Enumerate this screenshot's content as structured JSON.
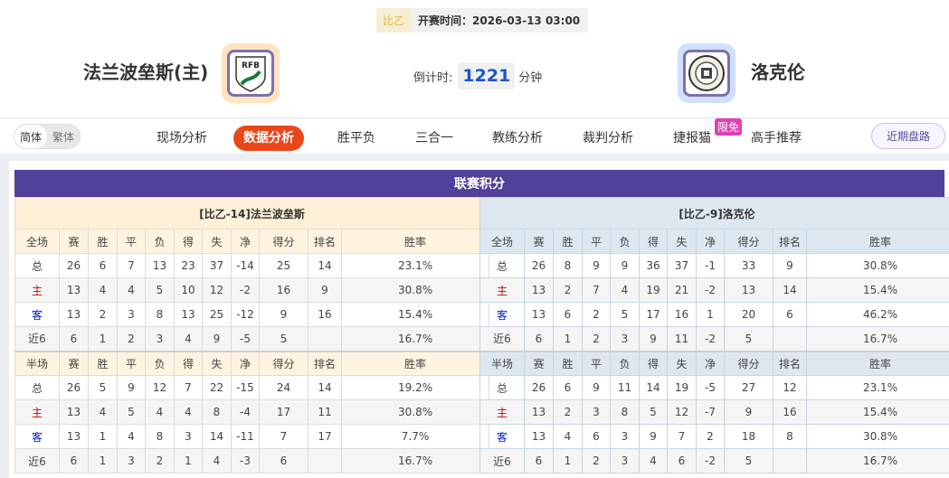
{
  "header": {
    "league": "比乙",
    "kickoff": "开赛时间：2026-03-13 03:00",
    "home_team": "法兰波垒斯(主)",
    "away_team": "洛克伦",
    "home_logo_text": "RFB",
    "countdown_label": "倒计时:",
    "countdown_value": "1221",
    "countdown_unit": "分钟"
  },
  "nav": {
    "lang_simplified": "简体",
    "lang_traditional": "繁体",
    "tabs": [
      "现场分析",
      "数据分析",
      "胜平负",
      "三合一",
      "教练分析",
      "裁判分析",
      "捷报猫",
      "高手推荐"
    ],
    "active_tab": "数据分析",
    "badge": "限免",
    "recent_button": "近期盘路"
  },
  "standings": {
    "title": "联赛积分",
    "columns": [
      "赛",
      "胜",
      "平",
      "负",
      "得",
      "失",
      "净",
      "得分",
      "排名",
      "胜率"
    ],
    "full_label": "全场",
    "half_label": "半场",
    "home": {
      "title": "[比乙-14]法兰波垒斯",
      "full": [
        [
          "总",
          "26",
          "6",
          "7",
          "13",
          "23",
          "37",
          "-14",
          "25",
          "14",
          "23.1%"
        ],
        [
          "主",
          "13",
          "4",
          "4",
          "5",
          "10",
          "12",
          "-2",
          "16",
          "9",
          "30.8%"
        ],
        [
          "客",
          "13",
          "2",
          "3",
          "8",
          "13",
          "25",
          "-12",
          "9",
          "16",
          "15.4%"
        ],
        [
          "近6",
          "6",
          "1",
          "2",
          "3",
          "4",
          "9",
          "-5",
          "5",
          "",
          "16.7%"
        ]
      ],
      "half": [
        [
          "总",
          "26",
          "5",
          "9",
          "12",
          "7",
          "22",
          "-15",
          "24",
          "14",
          "19.2%"
        ],
        [
          "主",
          "13",
          "4",
          "5",
          "4",
          "4",
          "8",
          "-4",
          "17",
          "11",
          "30.8%"
        ],
        [
          "客",
          "13",
          "1",
          "4",
          "8",
          "3",
          "14",
          "-11",
          "7",
          "17",
          "7.7%"
        ],
        [
          "近6",
          "6",
          "1",
          "3",
          "2",
          "1",
          "4",
          "-3",
          "6",
          "",
          "16.7%"
        ]
      ]
    },
    "away": {
      "title": "[比乙-9]洛克伦",
      "full": [
        [
          "总",
          "26",
          "8",
          "9",
          "9",
          "36",
          "37",
          "-1",
          "33",
          "9",
          "30.8%"
        ],
        [
          "主",
          "13",
          "2",
          "7",
          "4",
          "19",
          "21",
          "-2",
          "13",
          "14",
          "15.4%"
        ],
        [
          "客",
          "13",
          "6",
          "2",
          "5",
          "17",
          "16",
          "1",
          "20",
          "6",
          "46.2%"
        ],
        [
          "近6",
          "6",
          "1",
          "2",
          "3",
          "9",
          "11",
          "-2",
          "5",
          "",
          "16.7%"
        ]
      ],
      "half": [
        [
          "总",
          "26",
          "6",
          "9",
          "11",
          "14",
          "19",
          "-5",
          "27",
          "12",
          "23.1%"
        ],
        [
          "主",
          "13",
          "2",
          "3",
          "8",
          "5",
          "12",
          "-7",
          "9",
          "16",
          "15.4%"
        ],
        [
          "客",
          "13",
          "4",
          "6",
          "3",
          "9",
          "7",
          "2",
          "18",
          "8",
          "30.8%"
        ],
        [
          "近6",
          "6",
          "1",
          "2",
          "3",
          "4",
          "6",
          "-2",
          "5",
          "",
          "16.7%"
        ]
      ]
    }
  },
  "colors": {
    "accent": "#e9461a",
    "title_bar": "#52409a",
    "home_text": "#d40000",
    "away_text": "#0019c4",
    "countdown": "#1a55c8"
  }
}
